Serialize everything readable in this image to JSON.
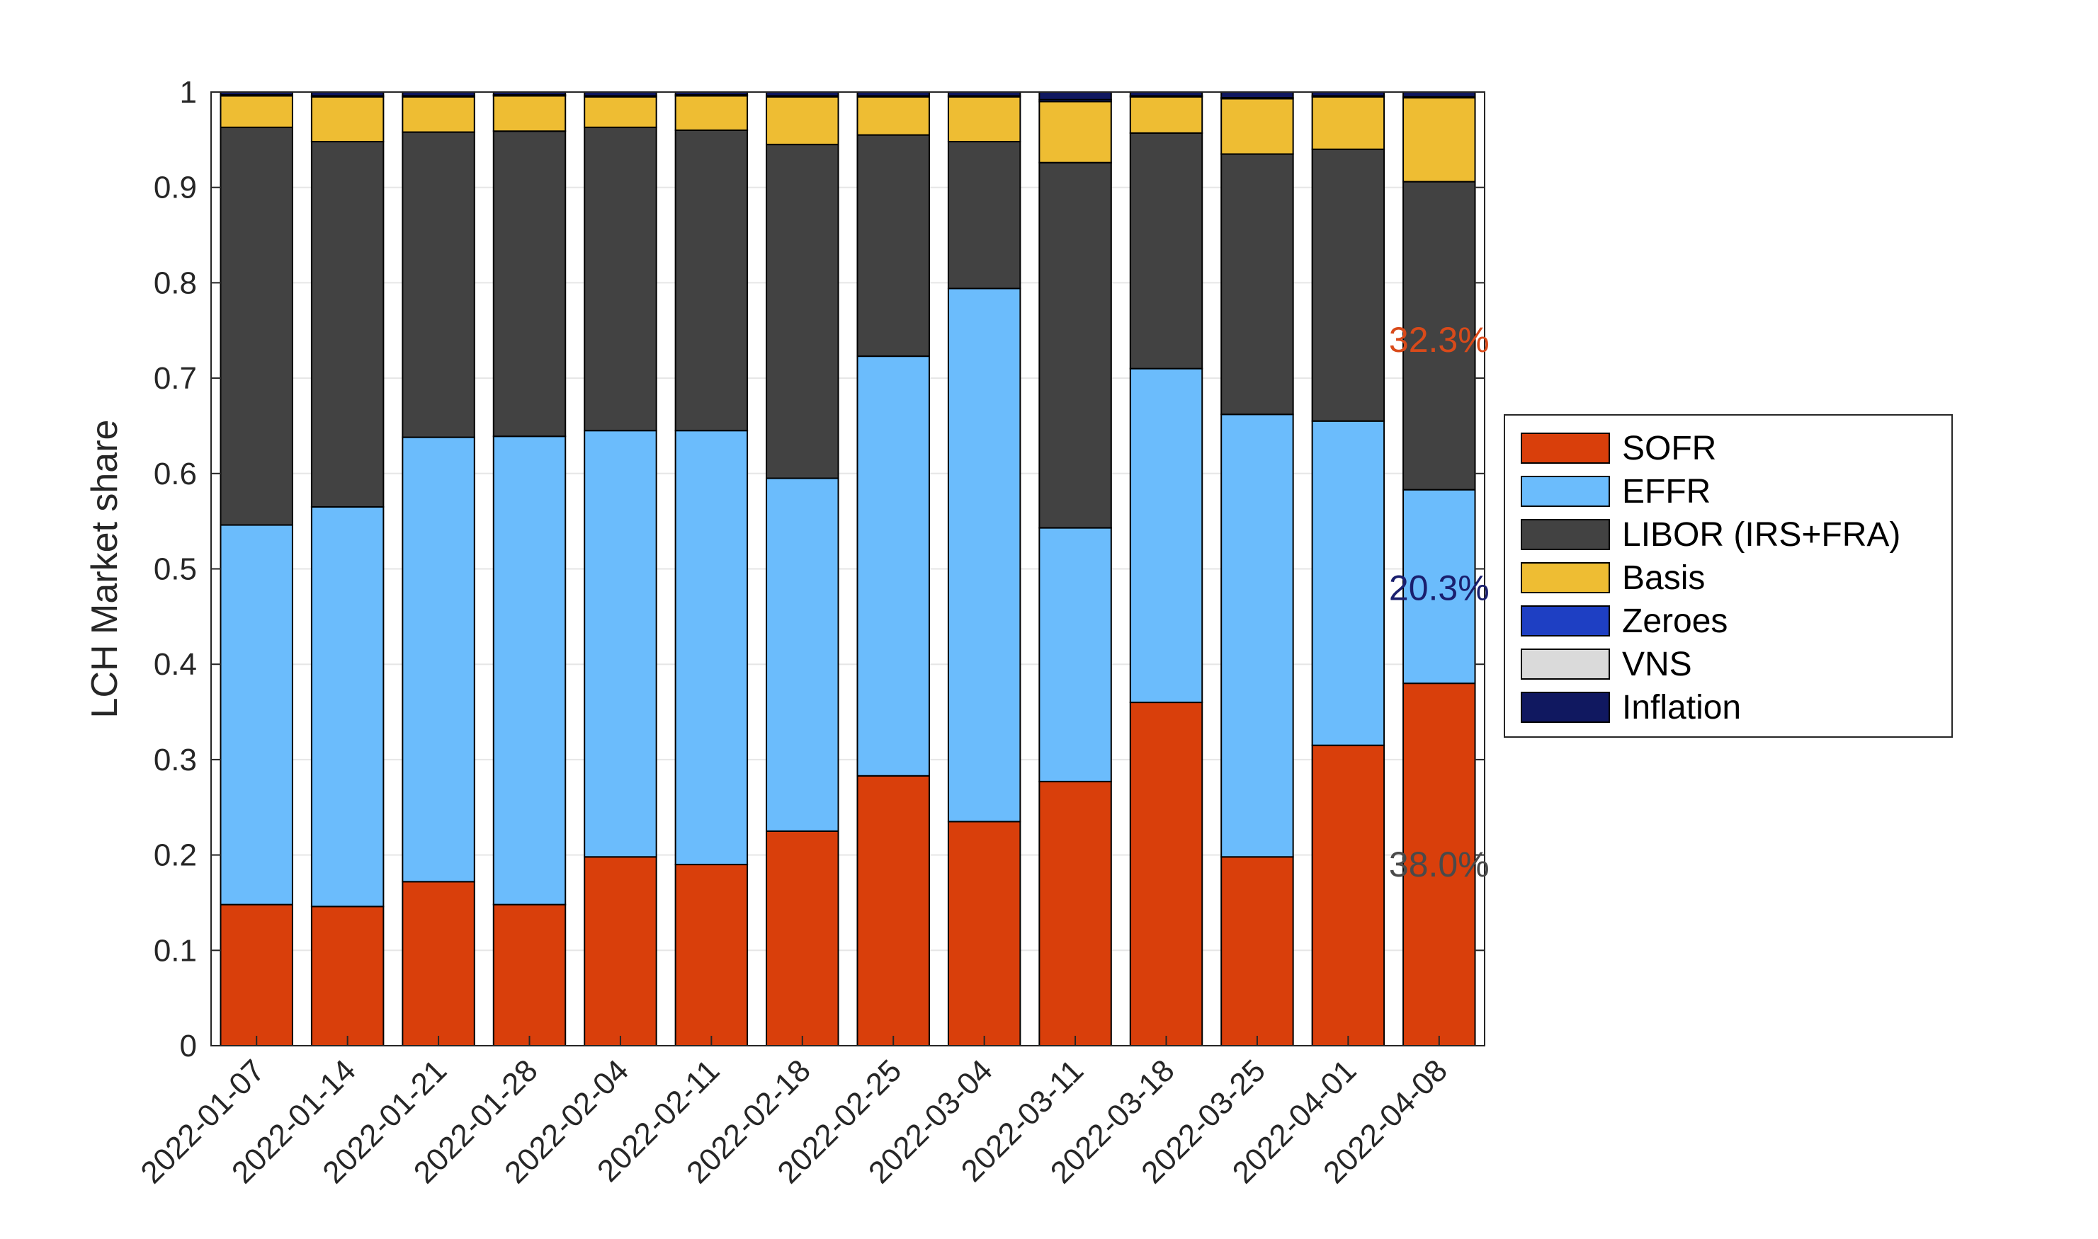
{
  "chart_data": {
    "type": "bar",
    "stacked": true,
    "xlabel": "",
    "ylabel": "LCH Market share",
    "ylim": [
      0,
      1
    ],
    "yticks": [
      "0",
      "0.1",
      "0.2",
      "0.3",
      "0.4",
      "0.5",
      "0.6",
      "0.7",
      "0.8",
      "0.9",
      "1"
    ],
    "grid": true,
    "legend_position": "right",
    "categories": [
      "2022-01-07",
      "2022-01-14",
      "2022-01-21",
      "2022-01-28",
      "2022-02-04",
      "2022-02-11",
      "2022-02-18",
      "2022-02-25",
      "2022-03-04",
      "2022-03-11",
      "2022-03-18",
      "2022-03-25",
      "2022-04-01",
      "2022-04-08"
    ],
    "series": [
      {
        "name": "SOFR",
        "color": "#D93F0B",
        "values": [
          0.148,
          0.146,
          0.172,
          0.148,
          0.198,
          0.19,
          0.225,
          0.283,
          0.235,
          0.277,
          0.36,
          0.198,
          0.315,
          0.38
        ]
      },
      {
        "name": "EFFR",
        "color": "#6BBCFC",
        "values": [
          0.398,
          0.419,
          0.466,
          0.491,
          0.447,
          0.455,
          0.37,
          0.44,
          0.559,
          0.266,
          0.35,
          0.464,
          0.34,
          0.203
        ]
      },
      {
        "name": "LIBOR (IRS+FRA)",
        "color": "#424242",
        "values": [
          0.417,
          0.383,
          0.32,
          0.32,
          0.318,
          0.315,
          0.35,
          0.232,
          0.154,
          0.383,
          0.247,
          0.273,
          0.285,
          0.323
        ]
      },
      {
        "name": "Basis",
        "color": "#EEBD33",
        "values": [
          0.033,
          0.047,
          0.037,
          0.037,
          0.032,
          0.036,
          0.05,
          0.04,
          0.047,
          0.064,
          0.038,
          0.058,
          0.055,
          0.088
        ]
      },
      {
        "name": "Zeroes",
        "color": "#1E3FC3",
        "values": [
          0.001,
          0.001,
          0.001,
          0.001,
          0.001,
          0.001,
          0.001,
          0.001,
          0.001,
          0.002,
          0.001,
          0.001,
          0.001,
          0.001
        ]
      },
      {
        "name": "VNS",
        "color": "#DADADA",
        "values": [
          0.0,
          0.0,
          0.0,
          0.0,
          0.0,
          0.0,
          0.0,
          0.0,
          0.0,
          0.0,
          0.0,
          0.0,
          0.0,
          0.0
        ]
      },
      {
        "name": "Inflation",
        "color": "#101860",
        "values": [
          0.003,
          0.004,
          0.004,
          0.003,
          0.004,
          0.003,
          0.004,
          0.004,
          0.004,
          0.008,
          0.004,
          0.006,
          0.004,
          0.005
        ]
      }
    ],
    "annotations": [
      {
        "text": "32.3%",
        "x": "2022-04-08",
        "y": 0.74,
        "color": "#D94A1A"
      },
      {
        "text": "20.3%",
        "x": "2022-04-08",
        "y": 0.48,
        "color": "#1A1F6E"
      },
      {
        "text": "38.0%",
        "x": "2022-04-08",
        "y": 0.19,
        "color": "#4A4A4A"
      }
    ]
  }
}
